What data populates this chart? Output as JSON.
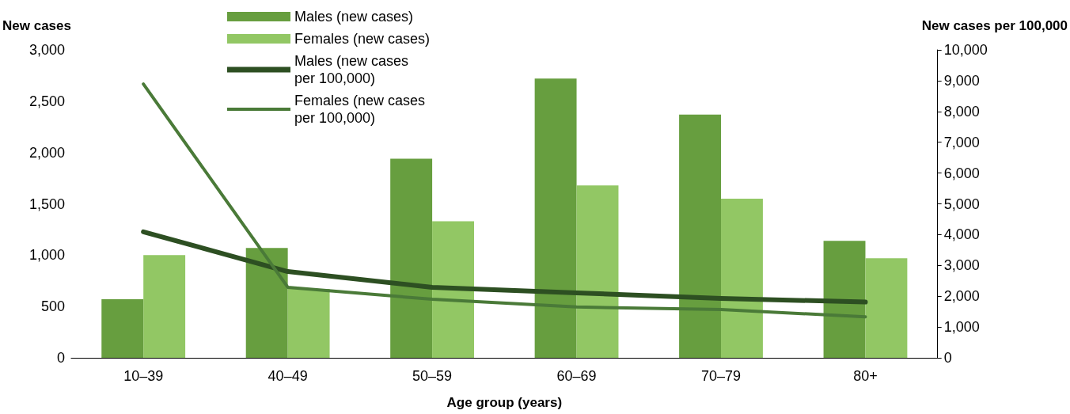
{
  "chart_data": {
    "type": "bar",
    "xlabel": "Age group (years)",
    "ylabel": "New cases",
    "y2label": "New cases per 100,000",
    "categories": [
      "10–39",
      "40–49",
      "50–59",
      "60–69",
      "70–79",
      "80+"
    ],
    "series": [
      {
        "name": "Males (new cases)",
        "color": "#679e3f",
        "values": [
          570,
          1070,
          1940,
          2720,
          2370,
          1140
        ]
      },
      {
        "name": "Females (new cases)",
        "color": "#92c764",
        "values": [
          1000,
          670,
          1330,
          1680,
          1550,
          970
        ]
      },
      {
        "name": "Males (new cases per 100,000)",
        "type": "line",
        "axis": "y2",
        "color": "#2d4f22",
        "values": [
          4090,
          2800,
          2290,
          2110,
          1930,
          1810
        ]
      },
      {
        "name": "Females (new cases per 100,000)",
        "type": "line",
        "axis": "y2",
        "color": "#4a7a38",
        "values": [
          8890,
          2290,
          1900,
          1650,
          1570,
          1330
        ]
      }
    ],
    "ylim": [
      0,
      3000
    ],
    "yticks": [
      0,
      500,
      {
        "value": 1000,
        "label": "1,000"
      },
      {
        "value": 1500,
        "label": "1,500"
      },
      {
        "value": 2000,
        "label": "2,000"
      },
      {
        "value": 2500,
        "label": "2,500"
      },
      {
        "value": 3000,
        "label": "3,000"
      }
    ],
    "y2lim": [
      0,
      10000
    ],
    "y2ticks": [
      0,
      {
        "value": 1000,
        "label": "1,000"
      },
      {
        "value": 2000,
        "label": "2,000"
      },
      {
        "value": 3000,
        "label": "3,000"
      },
      {
        "value": 4000,
        "label": "4,000"
      },
      {
        "value": 5000,
        "label": "5,000"
      },
      {
        "value": 6000,
        "label": "6,000"
      },
      {
        "value": 7000,
        "label": "7,000"
      },
      {
        "value": 8000,
        "label": "8,000"
      },
      {
        "value": 9000,
        "label": "9,000"
      },
      {
        "value": 10000,
        "label": "10,000"
      }
    ],
    "legend": "top",
    "grid": false,
    "marker": "none"
  }
}
